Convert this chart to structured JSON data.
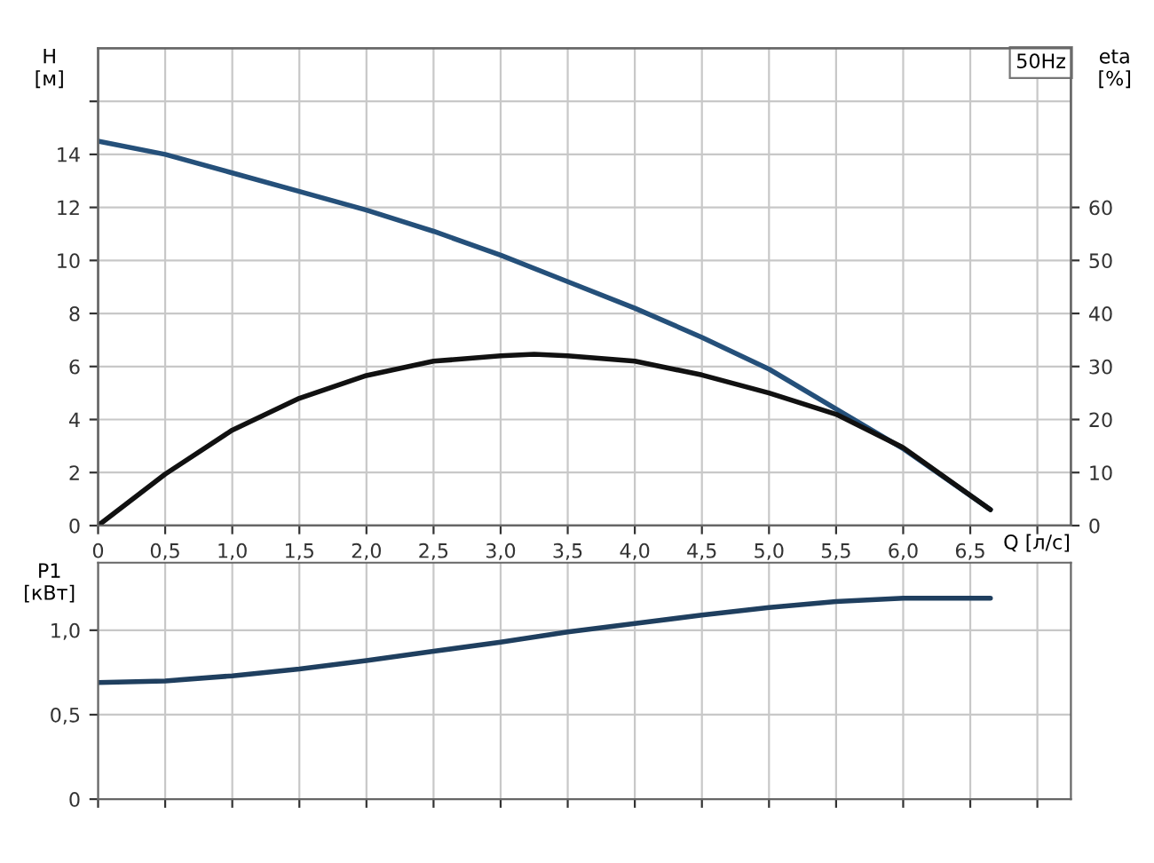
{
  "chart_data": [
    {
      "type": "line",
      "xlabel": "Q [л/с]",
      "ylabel": "H\n[м]",
      "y2label": "eta\n[%]",
      "annotations": [
        "50Hz"
      ],
      "grid": true,
      "legend": false,
      "marker": "none",
      "line_style": "solid",
      "xlim": [
        0,
        7.25
      ],
      "xticks": [
        0,
        {
          "value": 0.5,
          "label": "0,5"
        },
        {
          "value": 1.0,
          "label": "1,0"
        },
        {
          "value": 1.5,
          "label": "1,5"
        },
        {
          "value": 2.0,
          "label": "2,0"
        },
        {
          "value": 2.5,
          "label": "2,5"
        },
        {
          "value": 3.0,
          "label": "3,0"
        },
        {
          "value": 3.5,
          "label": "3,5"
        },
        {
          "value": 4.0,
          "label": "4,0"
        },
        {
          "value": 4.5,
          "label": "4,5"
        },
        {
          "value": 5.0,
          "label": "5,0"
        },
        {
          "value": 5.5,
          "label": "5,5"
        },
        {
          "value": 6.0,
          "label": "6,0"
        },
        {
          "value": 6.5,
          "label": "6,5"
        },
        {
          "value": 7.0,
          "label": null
        }
      ],
      "ylim": [
        0,
        18
      ],
      "yticks": [
        0,
        2,
        4,
        6,
        8,
        10,
        12,
        14,
        {
          "value": 16,
          "label": null
        }
      ],
      "y2lim": [
        0,
        90
      ],
      "y2ticks": [
        0,
        10,
        20,
        30,
        40,
        50,
        60
      ],
      "series": [
        {
          "color": "#25507a",
          "x": [
            0,
            0.5,
            1.0,
            1.5,
            2.0,
            2.5,
            3.0,
            3.5,
            4.0,
            4.5,
            5.0,
            5.5,
            6.0,
            6.65
          ],
          "values": [
            14.5,
            14.0,
            13.3,
            12.6,
            11.9,
            11.1,
            10.2,
            9.2,
            8.2,
            7.1,
            5.9,
            4.4,
            2.9,
            0.6
          ]
        },
        {
          "color": "#111111",
          "axis": "y2",
          "x": [
            0,
            0.5,
            1.0,
            1.5,
            2.0,
            2.5,
            3.0,
            3.25,
            3.5,
            4.0,
            4.5,
            5.0,
            5.5,
            6.0,
            6.65
          ],
          "values": [
            0,
            9.7,
            18,
            24,
            28.3,
            31,
            32,
            32.3,
            32,
            31,
            28.4,
            25,
            21,
            14.7,
            3
          ]
        }
      ]
    },
    {
      "type": "line",
      "ylabel": "P1\n[кВт]",
      "grid": true,
      "legend": false,
      "marker": "none",
      "line_style": "solid",
      "tick_labels": "y",
      "xlim": [
        0,
        7.25
      ],
      "xticks": [
        0,
        0.5,
        1.0,
        1.5,
        2.0,
        2.5,
        3.0,
        3.5,
        4.0,
        4.5,
        5.0,
        5.5,
        6.0,
        6.5,
        7.0
      ],
      "ylim": [
        0,
        1.4
      ],
      "yticks": [
        0,
        {
          "value": 0.5,
          "label": "0,5"
        },
        {
          "value": 1.0,
          "label": "1,0"
        }
      ],
      "series": [
        {
          "color": "#1f3f5f",
          "x": [
            0,
            0.5,
            1.0,
            1.5,
            2.0,
            2.5,
            3.0,
            3.5,
            4.0,
            4.5,
            5.0,
            5.5,
            6.0,
            6.65
          ],
          "values": [
            0.69,
            0.7,
            0.73,
            0.77,
            0.82,
            0.875,
            0.93,
            0.99,
            1.04,
            1.09,
            1.135,
            1.17,
            1.19,
            1.19
          ]
        }
      ]
    }
  ]
}
